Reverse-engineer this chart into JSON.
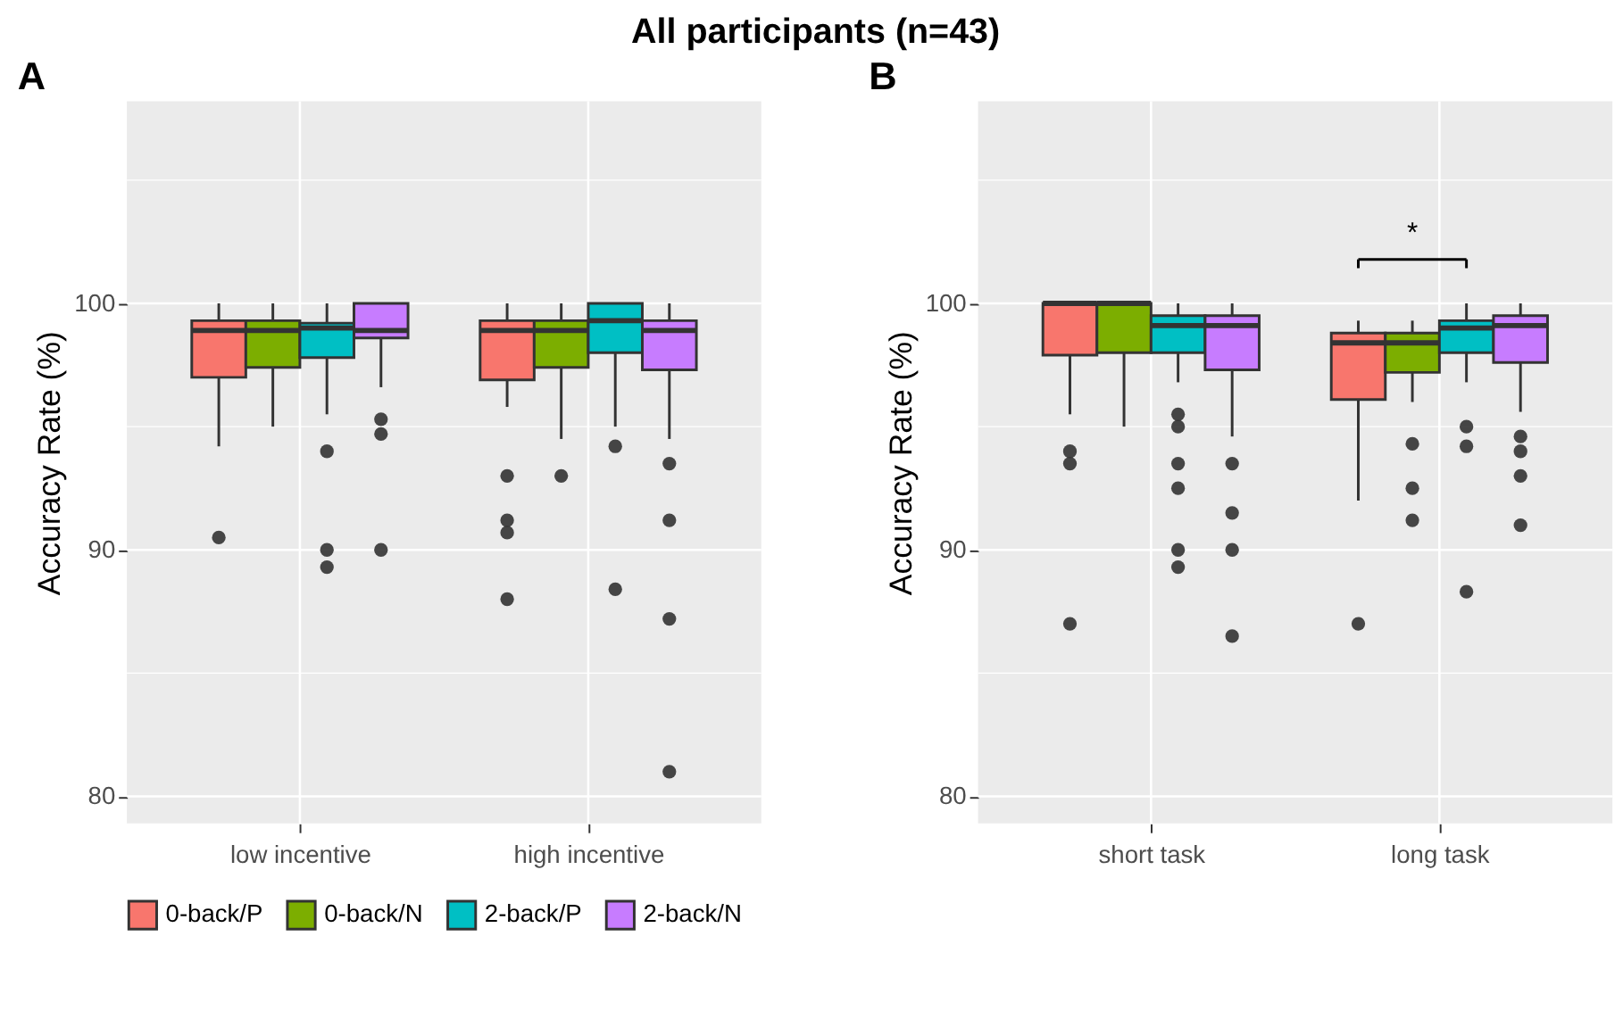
{
  "chart_data": [
    {
      "type": "box",
      "title": "All participants (n=43)",
      "annotations": [
        "A"
      ],
      "ylabel": "Accuracy Rate (%)",
      "categories": [
        "low incentive",
        "high incentive"
      ],
      "ylim": [
        78.9,
        108.2
      ],
      "yticks": [
        80,
        {
          "value": 85,
          "label": null
        },
        90,
        {
          "value": 95,
          "label": null
        },
        100,
        {
          "value": 105,
          "label": null
        }
      ],
      "grid": true,
      "legend": "bottom",
      "series": [
        {
          "name": "0-back/P",
          "color": "#f8766d",
          "boxes": [
            {
              "low": 94.2,
              "q1": 97.0,
              "median": 98.9,
              "q3": 99.3,
              "high": 100,
              "outliers": [
                90.5
              ]
            },
            {
              "low": 95.8,
              "q1": 96.9,
              "median": 98.9,
              "q3": 99.3,
              "high": 100,
              "outliers": [
                93.0,
                91.2,
                90.7,
                88.0
              ]
            }
          ]
        },
        {
          "name": "0-back/N",
          "color": "#7cae00",
          "boxes": [
            {
              "low": 95.0,
              "q1": 97.4,
              "median": 98.9,
              "q3": 99.3,
              "high": 100
            },
            {
              "low": 94.5,
              "q1": 97.4,
              "median": 98.9,
              "q3": 99.3,
              "high": 100,
              "outliers": [
                93.0
              ]
            }
          ]
        },
        {
          "name": "2-back/P",
          "color": "#00bfc4",
          "boxes": [
            {
              "low": 95.5,
              "q1": 97.8,
              "median": 99.0,
              "q3": 99.2,
              "high": 100,
              "outliers": [
                94.0,
                90.0,
                89.3
              ]
            },
            {
              "low": 95.0,
              "q1": 98.0,
              "median": 99.3,
              "q3": 100,
              "high": 100,
              "outliers": [
                94.2,
                88.4
              ]
            }
          ]
        },
        {
          "name": "2-back/N",
          "color": "#c77cff",
          "boxes": [
            {
              "low": 96.6,
              "q1": 98.6,
              "median": 98.9,
              "q3": 100,
              "high": 100,
              "outliers": [
                95.3,
                94.7,
                90.0
              ]
            },
            {
              "low": 94.5,
              "q1": 97.3,
              "median": 98.9,
              "q3": 99.3,
              "high": 100,
              "outliers": [
                93.5,
                91.2,
                87.2,
                81.0
              ]
            }
          ]
        }
      ]
    },
    {
      "type": "box",
      "annotations": [
        "B",
        "*"
      ],
      "ylabel": "Accuracy Rate (%)",
      "categories": [
        "short task",
        "long task"
      ],
      "ylim": [
        78.9,
        108.2
      ],
      "yticks": [
        80,
        {
          "value": 85,
          "label": null
        },
        90,
        {
          "value": 95,
          "label": null
        },
        100,
        {
          "value": 105,
          "label": null
        }
      ],
      "grid": true,
      "legend": "bottom",
      "series": [
        {
          "name": "0-back/P",
          "color": "#f8766d",
          "boxes": [
            {
              "low": 95.5,
              "q1": 97.9,
              "median": 100,
              "q3": 100,
              "high": 100,
              "outliers": [
                94.0,
                93.5,
                87.0
              ]
            },
            {
              "low": 92.0,
              "q1": 96.1,
              "median": 98.4,
              "q3": 98.8,
              "high": 99.3,
              "outliers": [
                87.0
              ]
            }
          ]
        },
        {
          "name": "0-back/N",
          "color": "#7cae00",
          "boxes": [
            {
              "low": 95.0,
              "q1": 98.0,
              "median": 100,
              "q3": 100,
              "high": 100
            },
            {
              "low": 96.0,
              "q1": 97.2,
              "median": 98.4,
              "q3": 98.8,
              "high": 99.3,
              "outliers": [
                94.3,
                92.5,
                91.2
              ]
            }
          ]
        },
        {
          "name": "2-back/P",
          "color": "#00bfc4",
          "boxes": [
            {
              "low": 96.8,
              "q1": 98.0,
              "median": 99.1,
              "q3": 99.5,
              "high": 100,
              "outliers": [
                95.5,
                95.0,
                93.5,
                92.5,
                90.0,
                89.3
              ]
            },
            {
              "low": 96.8,
              "q1": 98.0,
              "median": 99.0,
              "q3": 99.3,
              "high": 100,
              "outliers": [
                95.0,
                94.2,
                88.3
              ]
            }
          ]
        },
        {
          "name": "2-back/N",
          "color": "#c77cff",
          "boxes": [
            {
              "low": 94.6,
              "q1": 97.3,
              "median": 99.1,
              "q3": 99.5,
              "high": 100,
              "outliers": [
                93.5,
                91.5,
                90.0,
                86.5
              ]
            },
            {
              "low": 95.6,
              "q1": 97.6,
              "median": 99.1,
              "q3": 99.5,
              "high": 100,
              "outliers": [
                94.6,
                94.0,
                93.0,
                91.0
              ]
            }
          ]
        }
      ]
    }
  ]
}
